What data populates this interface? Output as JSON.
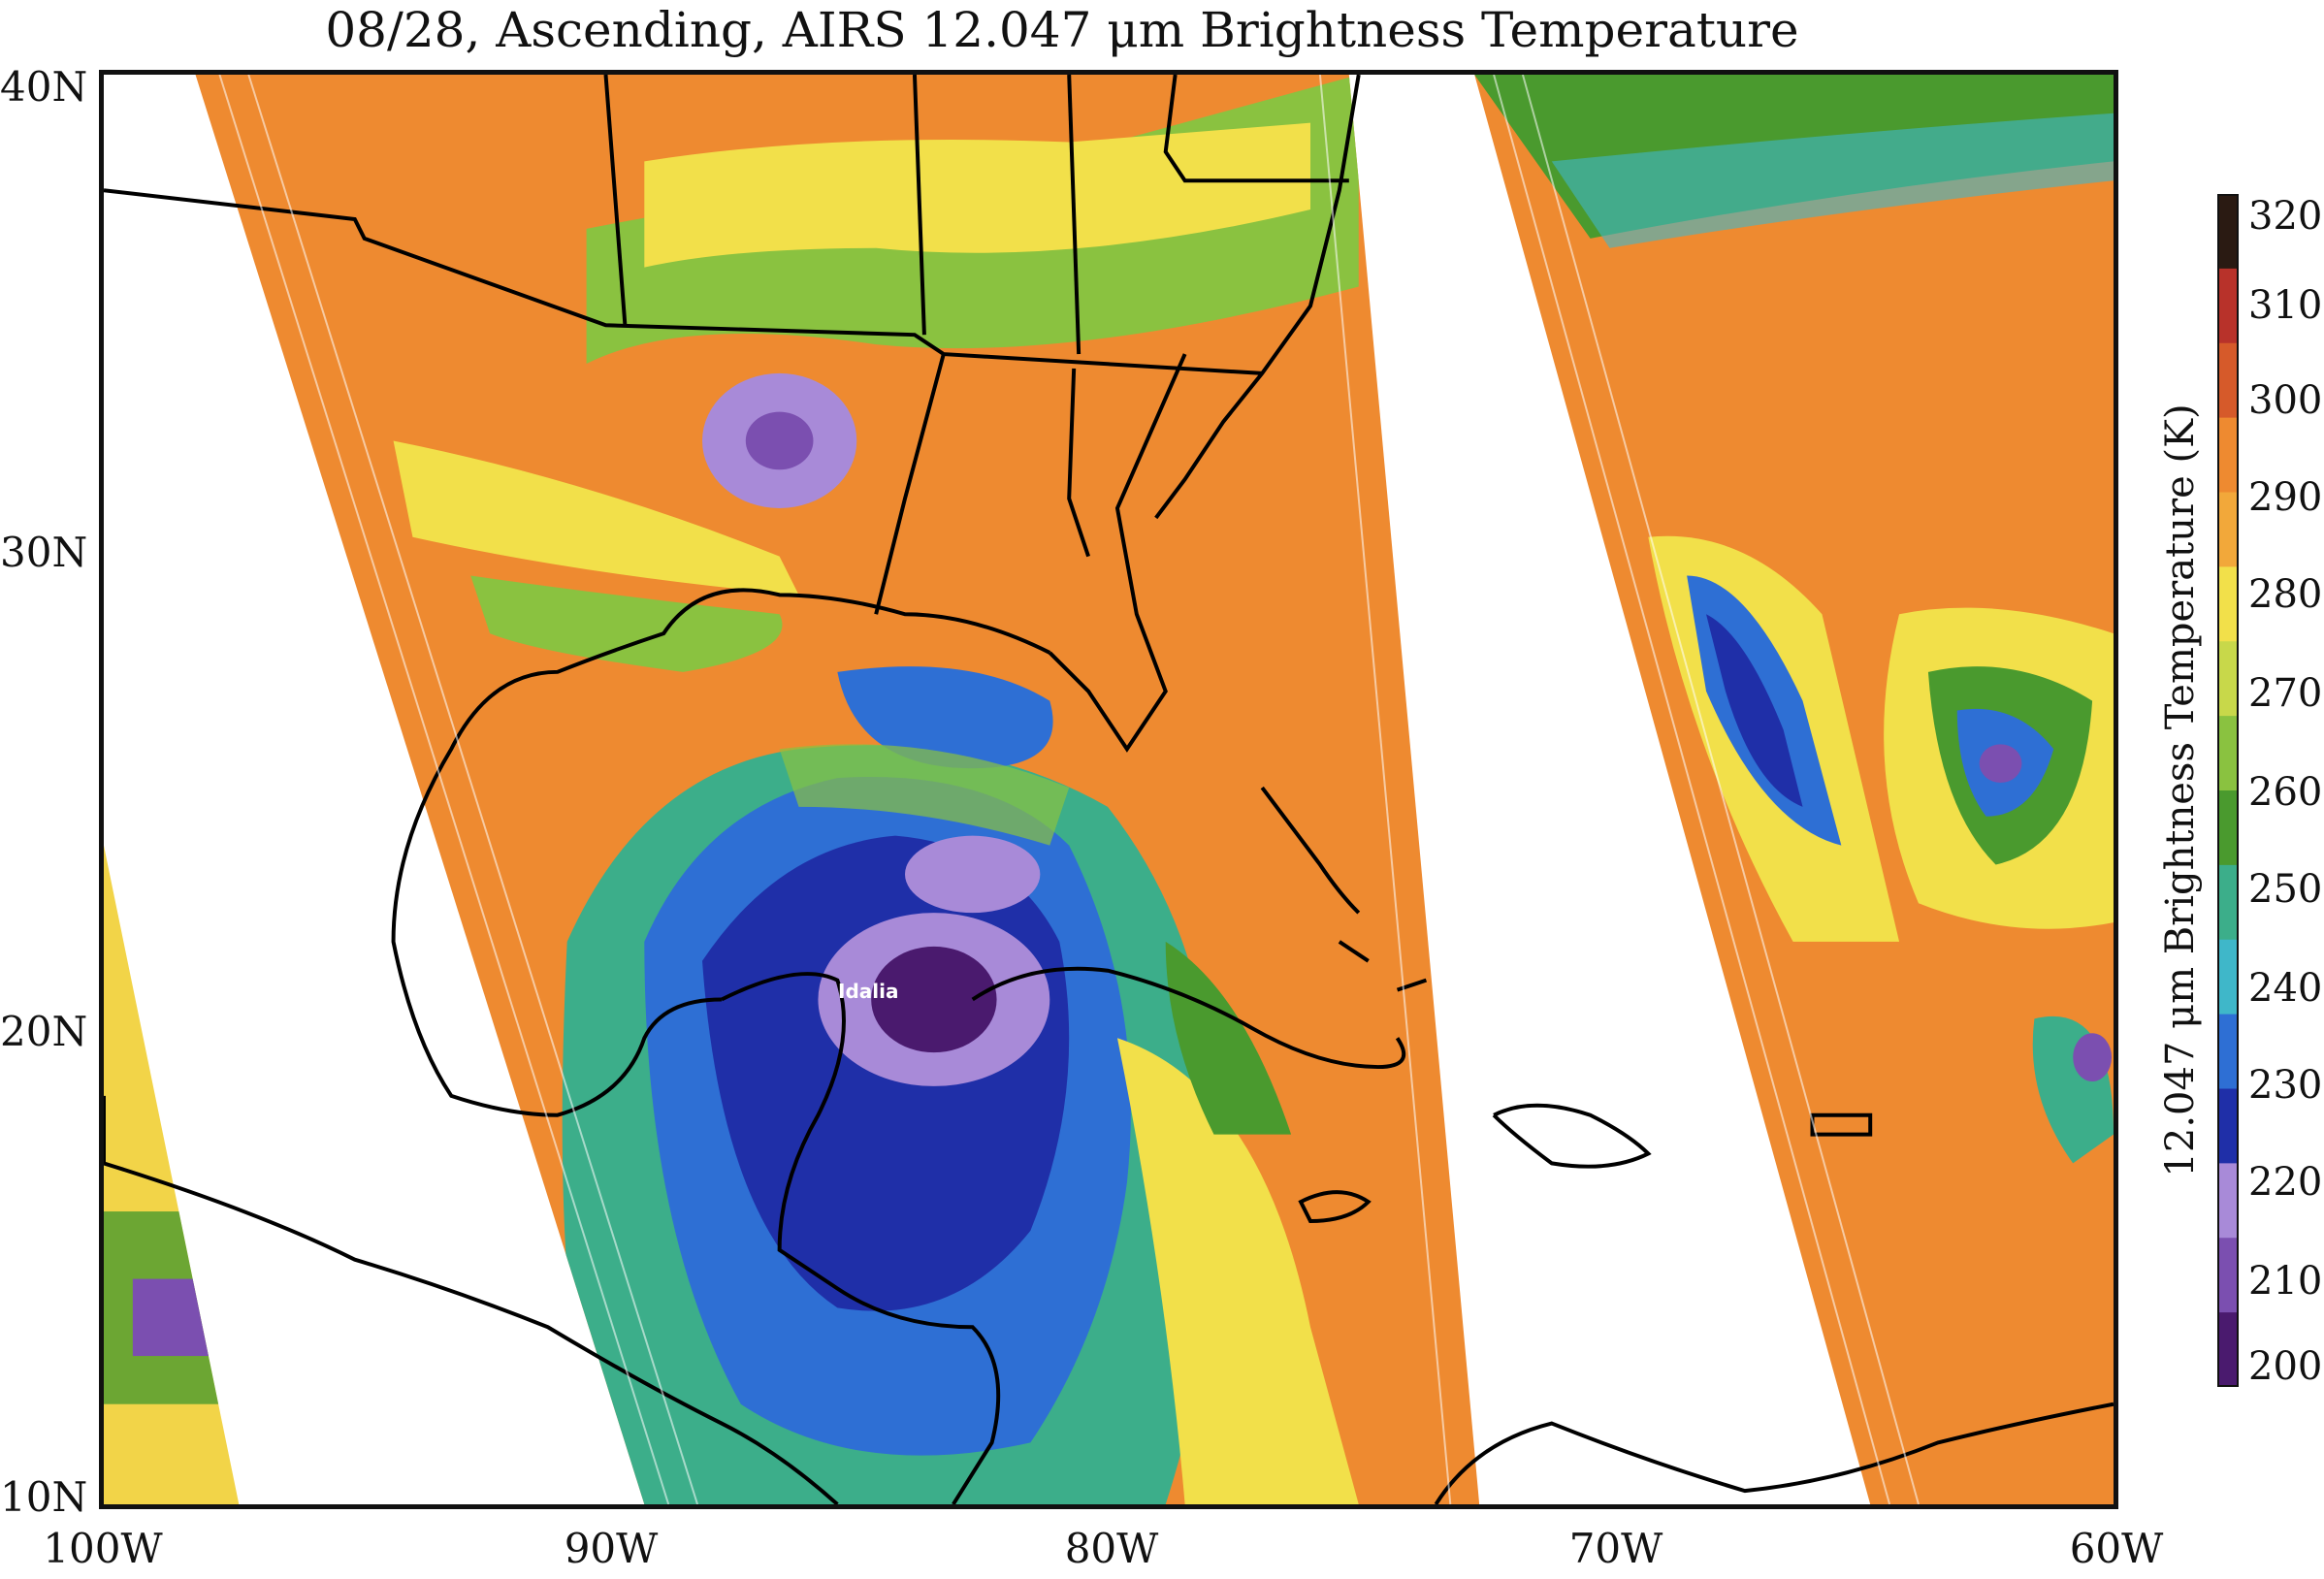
{
  "title": "08/28, Ascending, AIRS 12.047 μm Brightness Temperature",
  "map": {
    "storm_label": "Idalia",
    "lat_labels": [
      "40N",
      "30N",
      "20N",
      "10N"
    ],
    "lon_labels": [
      "100W",
      "90W",
      "80W",
      "70W",
      "60W"
    ],
    "extent": {
      "lon_min": -100,
      "lon_max": -60,
      "lat_min": 10,
      "lat_max": 40
    },
    "swaths": 3
  },
  "colorbar": {
    "title": "12.047 μm Brightness Temperature  (K)",
    "ticks": [
      "320",
      "310",
      "300",
      "290",
      "280",
      "270",
      "260",
      "250",
      "240",
      "230",
      "220",
      "210",
      "200"
    ],
    "range": [
      200,
      320
    ],
    "colors": [
      "#4a1a6e",
      "#7b4fb0",
      "#a88ad8",
      "#1f2fa8",
      "#2e6fd4",
      "#3fb7c9",
      "#3cae8a",
      "#4a9a2e",
      "#8ac240",
      "#c8d84a",
      "#f2e04a",
      "#f2a83a",
      "#ee8a30",
      "#d65a2a",
      "#b8322a",
      "#2a1a12"
    ]
  },
  "colors": {
    "frame": "#111111",
    "coastline": "#000000",
    "background": "#ffffff"
  }
}
